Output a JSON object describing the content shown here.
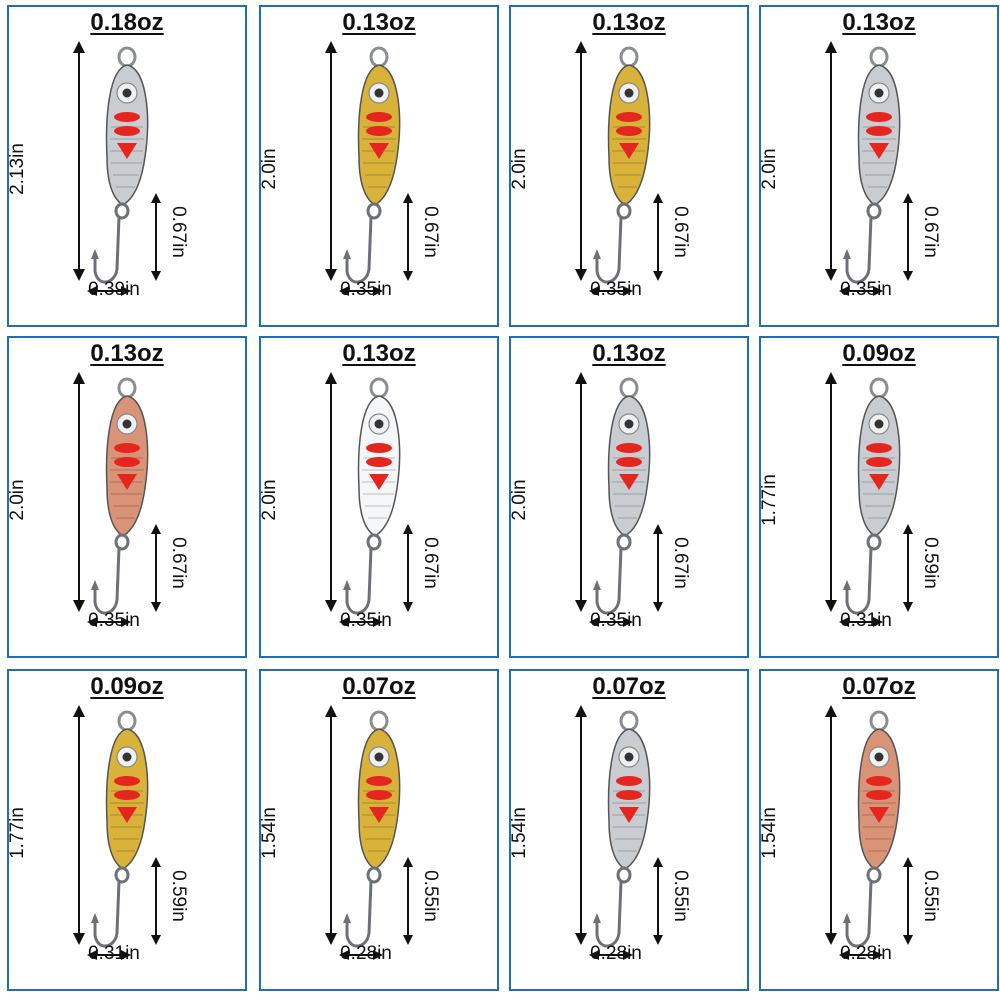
{
  "colors": {
    "frame": "#1f6fb5",
    "silver": "#c9ccd1",
    "gold": "#d9b23a",
    "copper": "#d99478",
    "white": "#f4f6f8",
    "stripe": "#e5261f"
  },
  "lures": [
    {
      "weight": "0.18oz",
      "length": "2.13in",
      "hook": "0.67in",
      "width": "0.39in",
      "finish": "silver"
    },
    {
      "weight": "0.13oz",
      "length": "2.0in",
      "hook": "0.67in",
      "width": "0.35in",
      "finish": "gold"
    },
    {
      "weight": "0.13oz",
      "length": "2.0in",
      "hook": "0.67in",
      "width": "0.35in",
      "finish": "gold"
    },
    {
      "weight": "0.13oz",
      "length": "2.0in",
      "hook": "0.67in",
      "width": "0.35in",
      "finish": "silver"
    },
    {
      "weight": "0.13oz",
      "length": "2.0in",
      "hook": "0.67in",
      "width": "0.35in",
      "finish": "copper"
    },
    {
      "weight": "0.13oz",
      "length": "2.0in",
      "hook": "0.67in",
      "width": "0.35in",
      "finish": "white"
    },
    {
      "weight": "0.13oz",
      "length": "2.0in",
      "hook": "0.67in",
      "width": "0.35in",
      "finish": "silver"
    },
    {
      "weight": "0.09oz",
      "length": "1.77in",
      "hook": "0.59in",
      "width": "0.31in",
      "finish": "silver"
    },
    {
      "weight": "0.09oz",
      "length": "1.77in",
      "hook": "0.59in",
      "width": "0.31in",
      "finish": "gold"
    },
    {
      "weight": "0.07oz",
      "length": "1.54in",
      "hook": "0.55in",
      "width": "0.28in",
      "finish": "gold"
    },
    {
      "weight": "0.07oz",
      "length": "1.54in",
      "hook": "0.55in",
      "width": "0.28in",
      "finish": "silver"
    },
    {
      "weight": "0.07oz",
      "length": "1.54in",
      "hook": "0.55in",
      "width": "0.28in",
      "finish": "copper"
    }
  ]
}
